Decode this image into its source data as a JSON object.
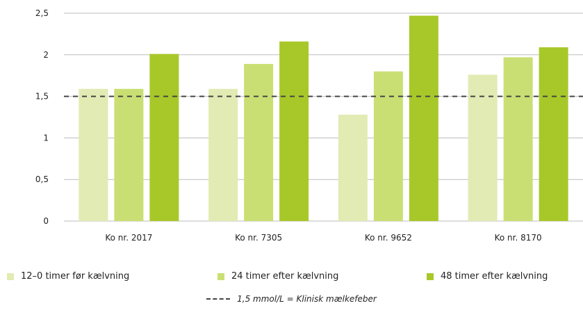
{
  "chart_data": {
    "type": "bar",
    "categories": [
      "Ko nr. 2017",
      "Ko nr. 7305",
      "Ko nr. 9652",
      "Ko nr. 8170"
    ],
    "series": [
      {
        "name": "12–0 timer før kælvning",
        "values": [
          1.59,
          1.59,
          1.28,
          1.76
        ],
        "color": "#e1ebb3"
      },
      {
        "name": "24 timer efter kælvning",
        "values": [
          1.59,
          1.89,
          1.8,
          1.97
        ],
        "color": "#cadf73"
      },
      {
        "name": "48 timer efter kælvning",
        "values": [
          2.01,
          2.16,
          2.47,
          2.09
        ],
        "color": "#a8c82a"
      }
    ],
    "yticks": [
      "0",
      "0,5",
      "1",
      "1,5",
      "2",
      "2,5"
    ],
    "ylim": [
      0,
      2.5
    ],
    "reference_line": {
      "value": 1.5,
      "label": "1,5 mmol/L = Klinisk mælkefeber"
    },
    "grid": true,
    "legend_position": "bottom"
  }
}
